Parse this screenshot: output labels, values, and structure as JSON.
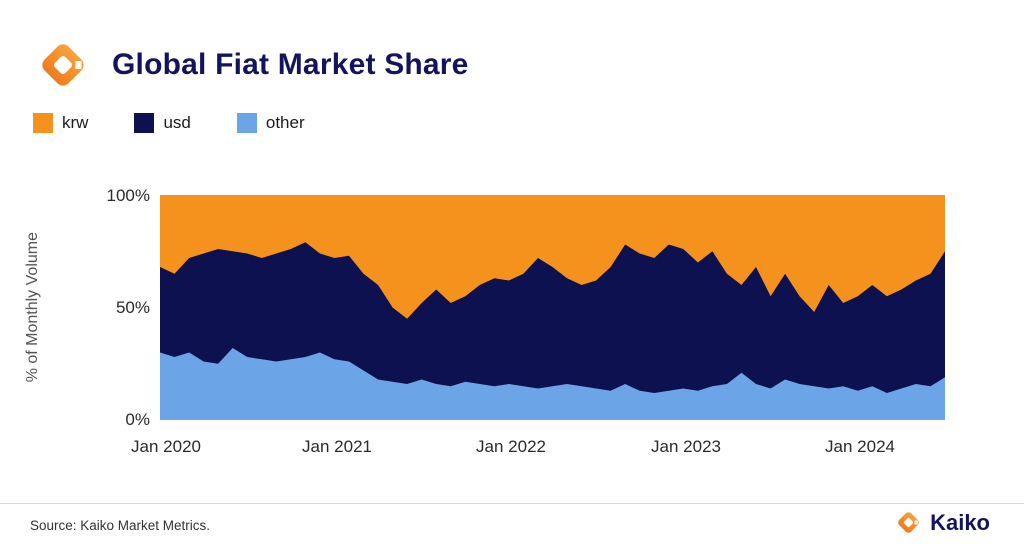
{
  "header": {
    "title": "Global Fiat Market Share"
  },
  "legend": [
    {
      "label": "krw",
      "color": "#F5921E"
    },
    {
      "label": "usd",
      "color": "#0D1150"
    },
    {
      "label": "other",
      "color": "#6BA5E7"
    }
  ],
  "chart_data": {
    "type": "area",
    "stacked": true,
    "title": "Global Fiat Market Share",
    "ylabel": "% of Monthly Volume",
    "ylim": [
      0,
      100
    ],
    "unit": "%",
    "grid": false,
    "legend_position": "top-left",
    "yticks": [
      "100%",
      "50%",
      "0%"
    ],
    "xticks": [
      "Jan 2020",
      "Jan 2021",
      "Jan 2022",
      "Jan 2023",
      "Jan 2024"
    ],
    "xtick_indices": [
      0,
      12,
      24,
      36,
      48
    ],
    "months": [
      "2020-01",
      "2020-02",
      "2020-03",
      "2020-04",
      "2020-05",
      "2020-06",
      "2020-07",
      "2020-08",
      "2020-09",
      "2020-10",
      "2020-11",
      "2020-12",
      "2021-01",
      "2021-02",
      "2021-03",
      "2021-04",
      "2021-05",
      "2021-06",
      "2021-07",
      "2021-08",
      "2021-09",
      "2021-10",
      "2021-11",
      "2021-12",
      "2022-01",
      "2022-02",
      "2022-03",
      "2022-04",
      "2022-05",
      "2022-06",
      "2022-07",
      "2022-08",
      "2022-09",
      "2022-10",
      "2022-11",
      "2022-12",
      "2023-01",
      "2023-02",
      "2023-03",
      "2023-04",
      "2023-05",
      "2023-06",
      "2023-07",
      "2023-08",
      "2023-09",
      "2023-10",
      "2023-11",
      "2023-12",
      "2024-01",
      "2024-02",
      "2024-03",
      "2024-04",
      "2024-05",
      "2024-06",
      "2024-07"
    ],
    "series": [
      {
        "name": "other",
        "color": "#6BA5E7",
        "values": [
          30,
          28,
          30,
          26,
          25,
          32,
          28,
          27,
          26,
          27,
          28,
          30,
          27,
          26,
          22,
          18,
          17,
          16,
          18,
          16,
          15,
          17,
          16,
          15,
          16,
          15,
          14,
          15,
          16,
          15,
          14,
          13,
          16,
          13,
          12,
          13,
          14,
          13,
          15,
          16,
          21,
          16,
          14,
          18,
          16,
          15,
          14,
          15,
          13,
          15,
          12,
          14,
          16,
          15,
          19
        ]
      },
      {
        "name": "usd",
        "color": "#0D1150",
        "values": [
          38,
          37,
          42,
          48,
          51,
          43,
          46,
          45,
          48,
          49,
          51,
          44,
          45,
          47,
          43,
          42,
          33,
          29,
          34,
          42,
          37,
          38,
          44,
          48,
          46,
          50,
          58,
          53,
          47,
          45,
          48,
          55,
          62,
          61,
          60,
          65,
          62,
          57,
          60,
          49,
          39,
          52,
          41,
          47,
          39,
          33,
          46,
          37,
          42,
          45,
          43,
          44,
          46,
          50,
          56
        ]
      },
      {
        "name": "krw",
        "color": "#F5921E",
        "values": [
          32,
          35,
          28,
          26,
          24,
          25,
          26,
          28,
          26,
          24,
          21,
          26,
          28,
          27,
          35,
          40,
          50,
          55,
          48,
          42,
          48,
          45,
          40,
          37,
          38,
          35,
          28,
          32,
          37,
          40,
          38,
          32,
          22,
          26,
          28,
          22,
          24,
          30,
          25,
          35,
          40,
          32,
          45,
          35,
          45,
          52,
          40,
          48,
          45,
          40,
          45,
          42,
          38,
          35,
          25
        ]
      }
    ]
  },
  "footer": {
    "source": "Source: Kaiko Market Metrics.",
    "brand": "Kaiko"
  }
}
